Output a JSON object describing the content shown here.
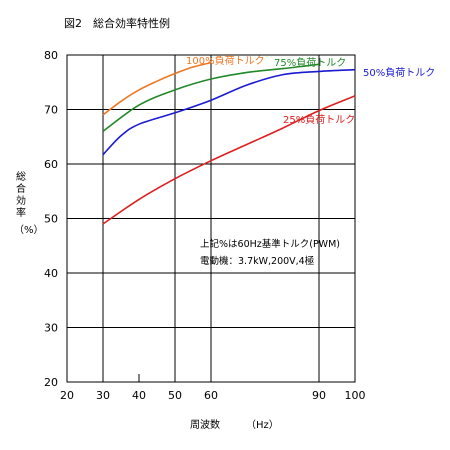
{
  "figure": {
    "title": "図2　総合効率特性例",
    "ylabel_text": "総合効率",
    "ylabel_unit": "（%）",
    "xlabel_text": "周波数",
    "xlabel_unit": "（Hz）",
    "note_line1": "上記%は60Hz基準トルク(PWM)",
    "note_line2": "電動機：3.7kW,200V,4極"
  },
  "chart_data": {
    "type": "line",
    "title": "図2　総合効率特性例",
    "xlabel": "周波数（Hz）",
    "ylabel": "総合効率（%）",
    "xlim": [
      20,
      100
    ],
    "ylim": [
      20,
      80
    ],
    "x_ticks": [
      20,
      30,
      40,
      50,
      60,
      90,
      100
    ],
    "y_ticks": [
      20,
      30,
      40,
      50,
      60,
      70,
      80
    ],
    "vertical_gridlines": [
      30,
      50,
      60,
      90
    ],
    "horizontal_gridlines": [
      30,
      40,
      50,
      60,
      70
    ],
    "grid": true,
    "series": [
      {
        "name": "100%負荷トルク",
        "color": "#ee7722",
        "x": [
          30,
          35,
          40,
          45,
          50,
          55,
          60
        ],
        "y": [
          69.0,
          71.5,
          73.6,
          75.2,
          76.6,
          77.8,
          78.6
        ]
      },
      {
        "name": "75%負荷トルク",
        "color": "#22882a",
        "x": [
          30,
          40,
          50,
          60,
          70,
          80,
          90
        ],
        "y": [
          66.0,
          70.8,
          73.6,
          75.6,
          76.8,
          77.5,
          78.3
        ]
      },
      {
        "name": "50%負荷トルク",
        "color": "#1a1ad4",
        "x": [
          30,
          35,
          40,
          50,
          60,
          70,
          80,
          90,
          100
        ],
        "y": [
          61.7,
          65.2,
          67.3,
          69.4,
          71.7,
          74.5,
          76.4,
          77.0,
          77.3
        ]
      },
      {
        "name": "25%負荷トルク",
        "color": "#dd1f1f",
        "x": [
          30,
          40,
          50,
          60,
          70,
          80,
          90,
          100
        ],
        "y": [
          49.0,
          53.5,
          57.3,
          60.6,
          63.6,
          66.6,
          69.8,
          72.5
        ]
      }
    ]
  }
}
